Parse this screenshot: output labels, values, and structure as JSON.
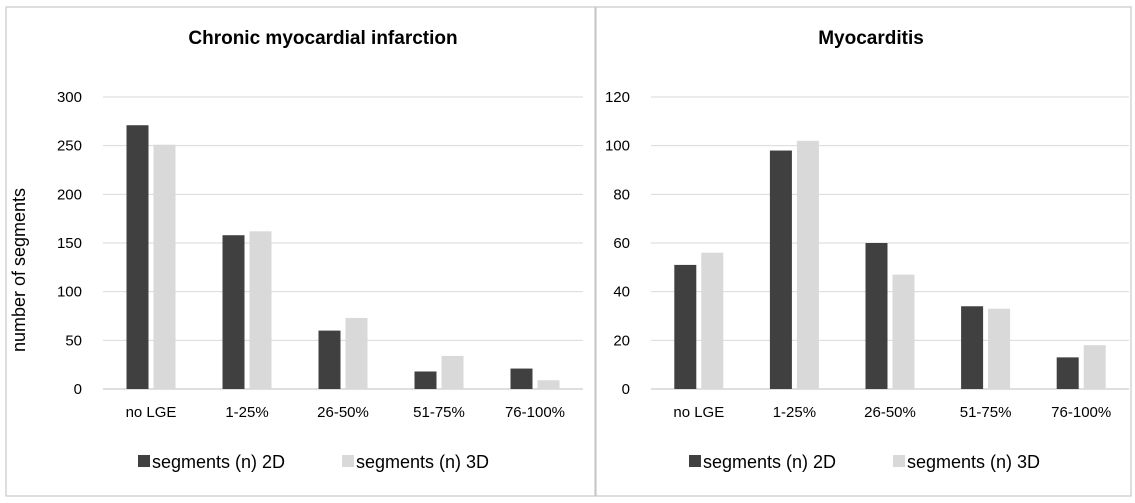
{
  "y_axis_label": "number of segments",
  "colors": {
    "series_2d": "#404040",
    "series_3d": "#d9d9d9"
  },
  "chart_data": [
    {
      "type": "bar",
      "title": "Chronic myocardial infarction",
      "xlabel": "",
      "ylabel": "number of segments",
      "categories": [
        "no LGE",
        "1-25%",
        "26-50%",
        "51-75%",
        "76-100%"
      ],
      "ylim": [
        0,
        300
      ],
      "yticks": [
        0,
        50,
        100,
        150,
        200,
        250,
        300
      ],
      "grid": true,
      "legend_position": "bottom",
      "series": [
        {
          "name": "segments (n) 2D",
          "values": [
            271,
            158,
            60,
            18,
            21
          ]
        },
        {
          "name": "segments (n) 3D",
          "values": [
            251,
            162,
            73,
            34,
            9
          ]
        }
      ]
    },
    {
      "type": "bar",
      "title": "Myocarditis",
      "xlabel": "",
      "ylabel": "",
      "categories": [
        "no LGE",
        "1-25%",
        "26-50%",
        "51-75%",
        "76-100%"
      ],
      "ylim": [
        0,
        120
      ],
      "yticks": [
        0,
        20,
        40,
        60,
        80,
        100,
        120
      ],
      "grid": true,
      "legend_position": "bottom",
      "series": [
        {
          "name": "segments (n) 2D",
          "values": [
            51,
            98,
            60,
            34,
            13
          ]
        },
        {
          "name": "segments (n) 3D",
          "values": [
            56,
            102,
            47,
            33,
            18
          ]
        }
      ]
    }
  ]
}
